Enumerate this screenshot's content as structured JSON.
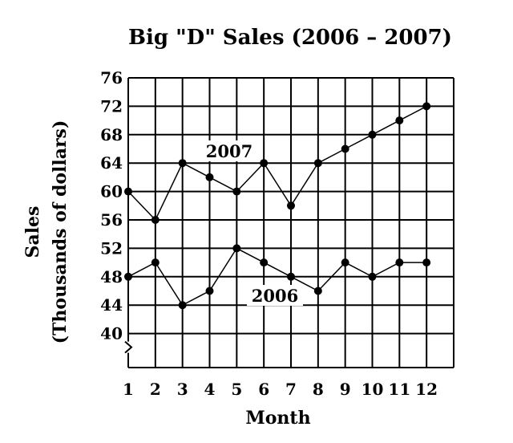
{
  "chart_data": {
    "type": "line",
    "title": "Big \"D\" Sales (2006 – 2007)",
    "xlabel": "Month",
    "ylabel_line1": "Sales",
    "ylabel_line2": "(Thousands of dollars)",
    "x": [
      1,
      2,
      3,
      4,
      5,
      6,
      7,
      8,
      9,
      10,
      11,
      12
    ],
    "x_tick_labels": [
      "1",
      "2",
      "3",
      "4",
      "5",
      "6",
      "7",
      "8",
      "9",
      "10",
      "11",
      "12"
    ],
    "y_tick_labels": [
      "40",
      "44",
      "48",
      "52",
      "56",
      "60",
      "64",
      "68",
      "72",
      "76"
    ],
    "ylim": [
      40,
      76
    ],
    "y_axis_break": true,
    "grid": true,
    "series": [
      {
        "name": "2007",
        "values": [
          60,
          56,
          64,
          62,
          60,
          64,
          58,
          64,
          66,
          68,
          70,
          72
        ]
      },
      {
        "name": "2006",
        "values": [
          48,
          50,
          44,
          46,
          52,
          50,
          48,
          46,
          50,
          48,
          50,
          50
        ]
      }
    ]
  }
}
